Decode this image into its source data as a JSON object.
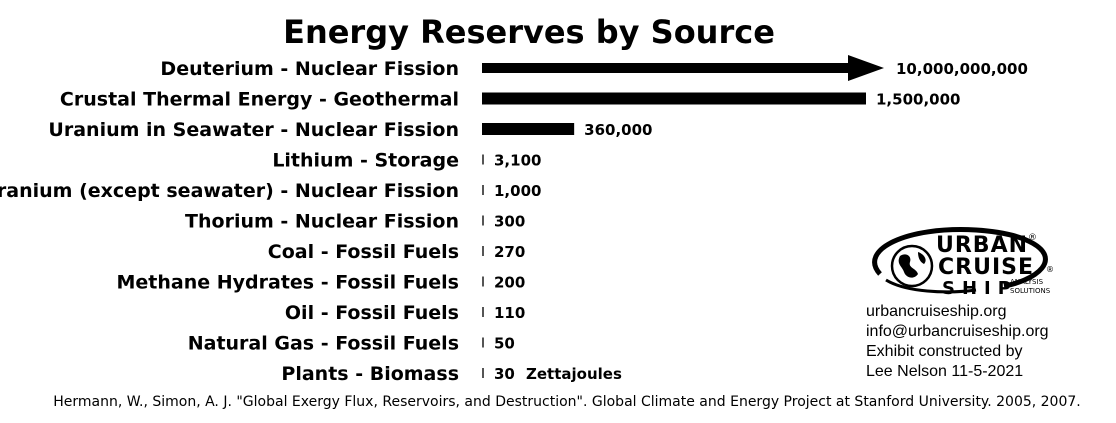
{
  "chart_data": {
    "type": "bar",
    "orientation": "horizontal",
    "title": "Energy Reserves by Source",
    "categories": [
      "Deuterium - Nuclear Fission",
      "Crustal Thermal Energy - Geothermal",
      "Uranium in Seawater - Nuclear Fission",
      "Lithium - Storage",
      "Uranium (except seawater) - Nuclear Fission",
      "Thorium - Nuclear Fission",
      "Coal - Fossil Fuels",
      "Methane Hydrates - Fossil Fuels",
      "Oil - Fossil Fuels",
      "Natural Gas - Fossil Fuels",
      "Plants - Biomass"
    ],
    "values": [
      10000000000,
      1500000,
      360000,
      3100,
      1000,
      300,
      270,
      200,
      110,
      50,
      30
    ],
    "value_labels": [
      "10,000,000,000",
      "1,500,000",
      "360,000",
      "3,100",
      "1,000",
      "300",
      "270",
      "200",
      "110",
      "50",
      "30"
    ],
    "unit_label": "Zettajoules",
    "axis_break_on_first_bar": true,
    "bar_color": "#000000",
    "grid": false,
    "legend": "none"
  },
  "source": "Hermann, W., Simon, A. J. \"Global Exergy Flux, Reservoirs, and Destruction\". Global Climate and Energy Project at Stanford University. 2005, 2007.",
  "logo": {
    "line1": "URBAN",
    "line2": "CRUISE",
    "line3": "SHIP",
    "tag1": "ANALYSIS",
    "tag2": "SOLUTIONS",
    "registered": "®",
    "icon": "globe-icon"
  },
  "contact": {
    "website": "urbancruiseship.org",
    "email": "info@urbancruiseship.org",
    "credit1": "Exhibit constructed by",
    "credit2": "Lee Nelson 11-5-2021"
  }
}
